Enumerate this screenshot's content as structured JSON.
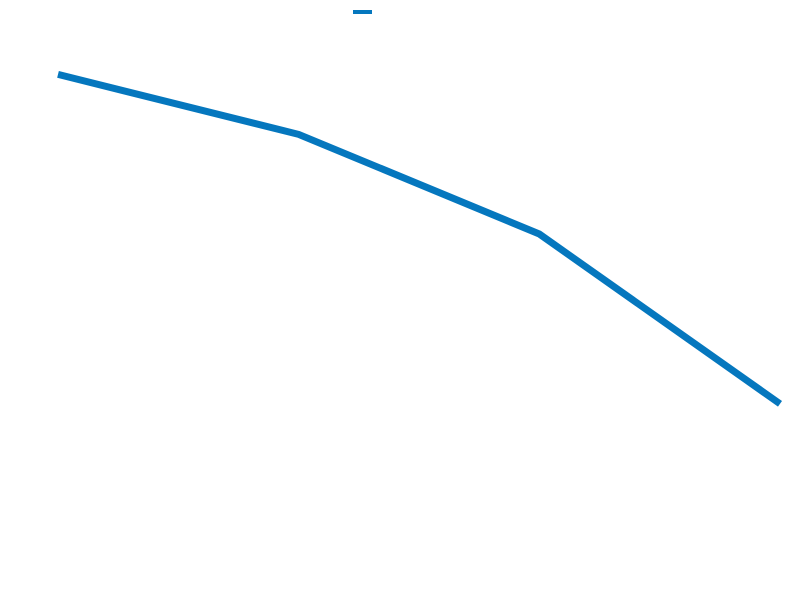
{
  "chart_data": {
    "type": "line",
    "title": "",
    "xlabel": "",
    "ylabel": "",
    "x": [
      1,
      2,
      3,
      4
    ],
    "xlim": [
      1,
      4
    ],
    "ylim": [
      0,
      100
    ],
    "grid": false,
    "legend": "top-center",
    "series": [
      {
        "color": "#0577be",
        "values": [
          87.6,
          77.6,
          61.0,
          32.7
        ]
      }
    ]
  }
}
